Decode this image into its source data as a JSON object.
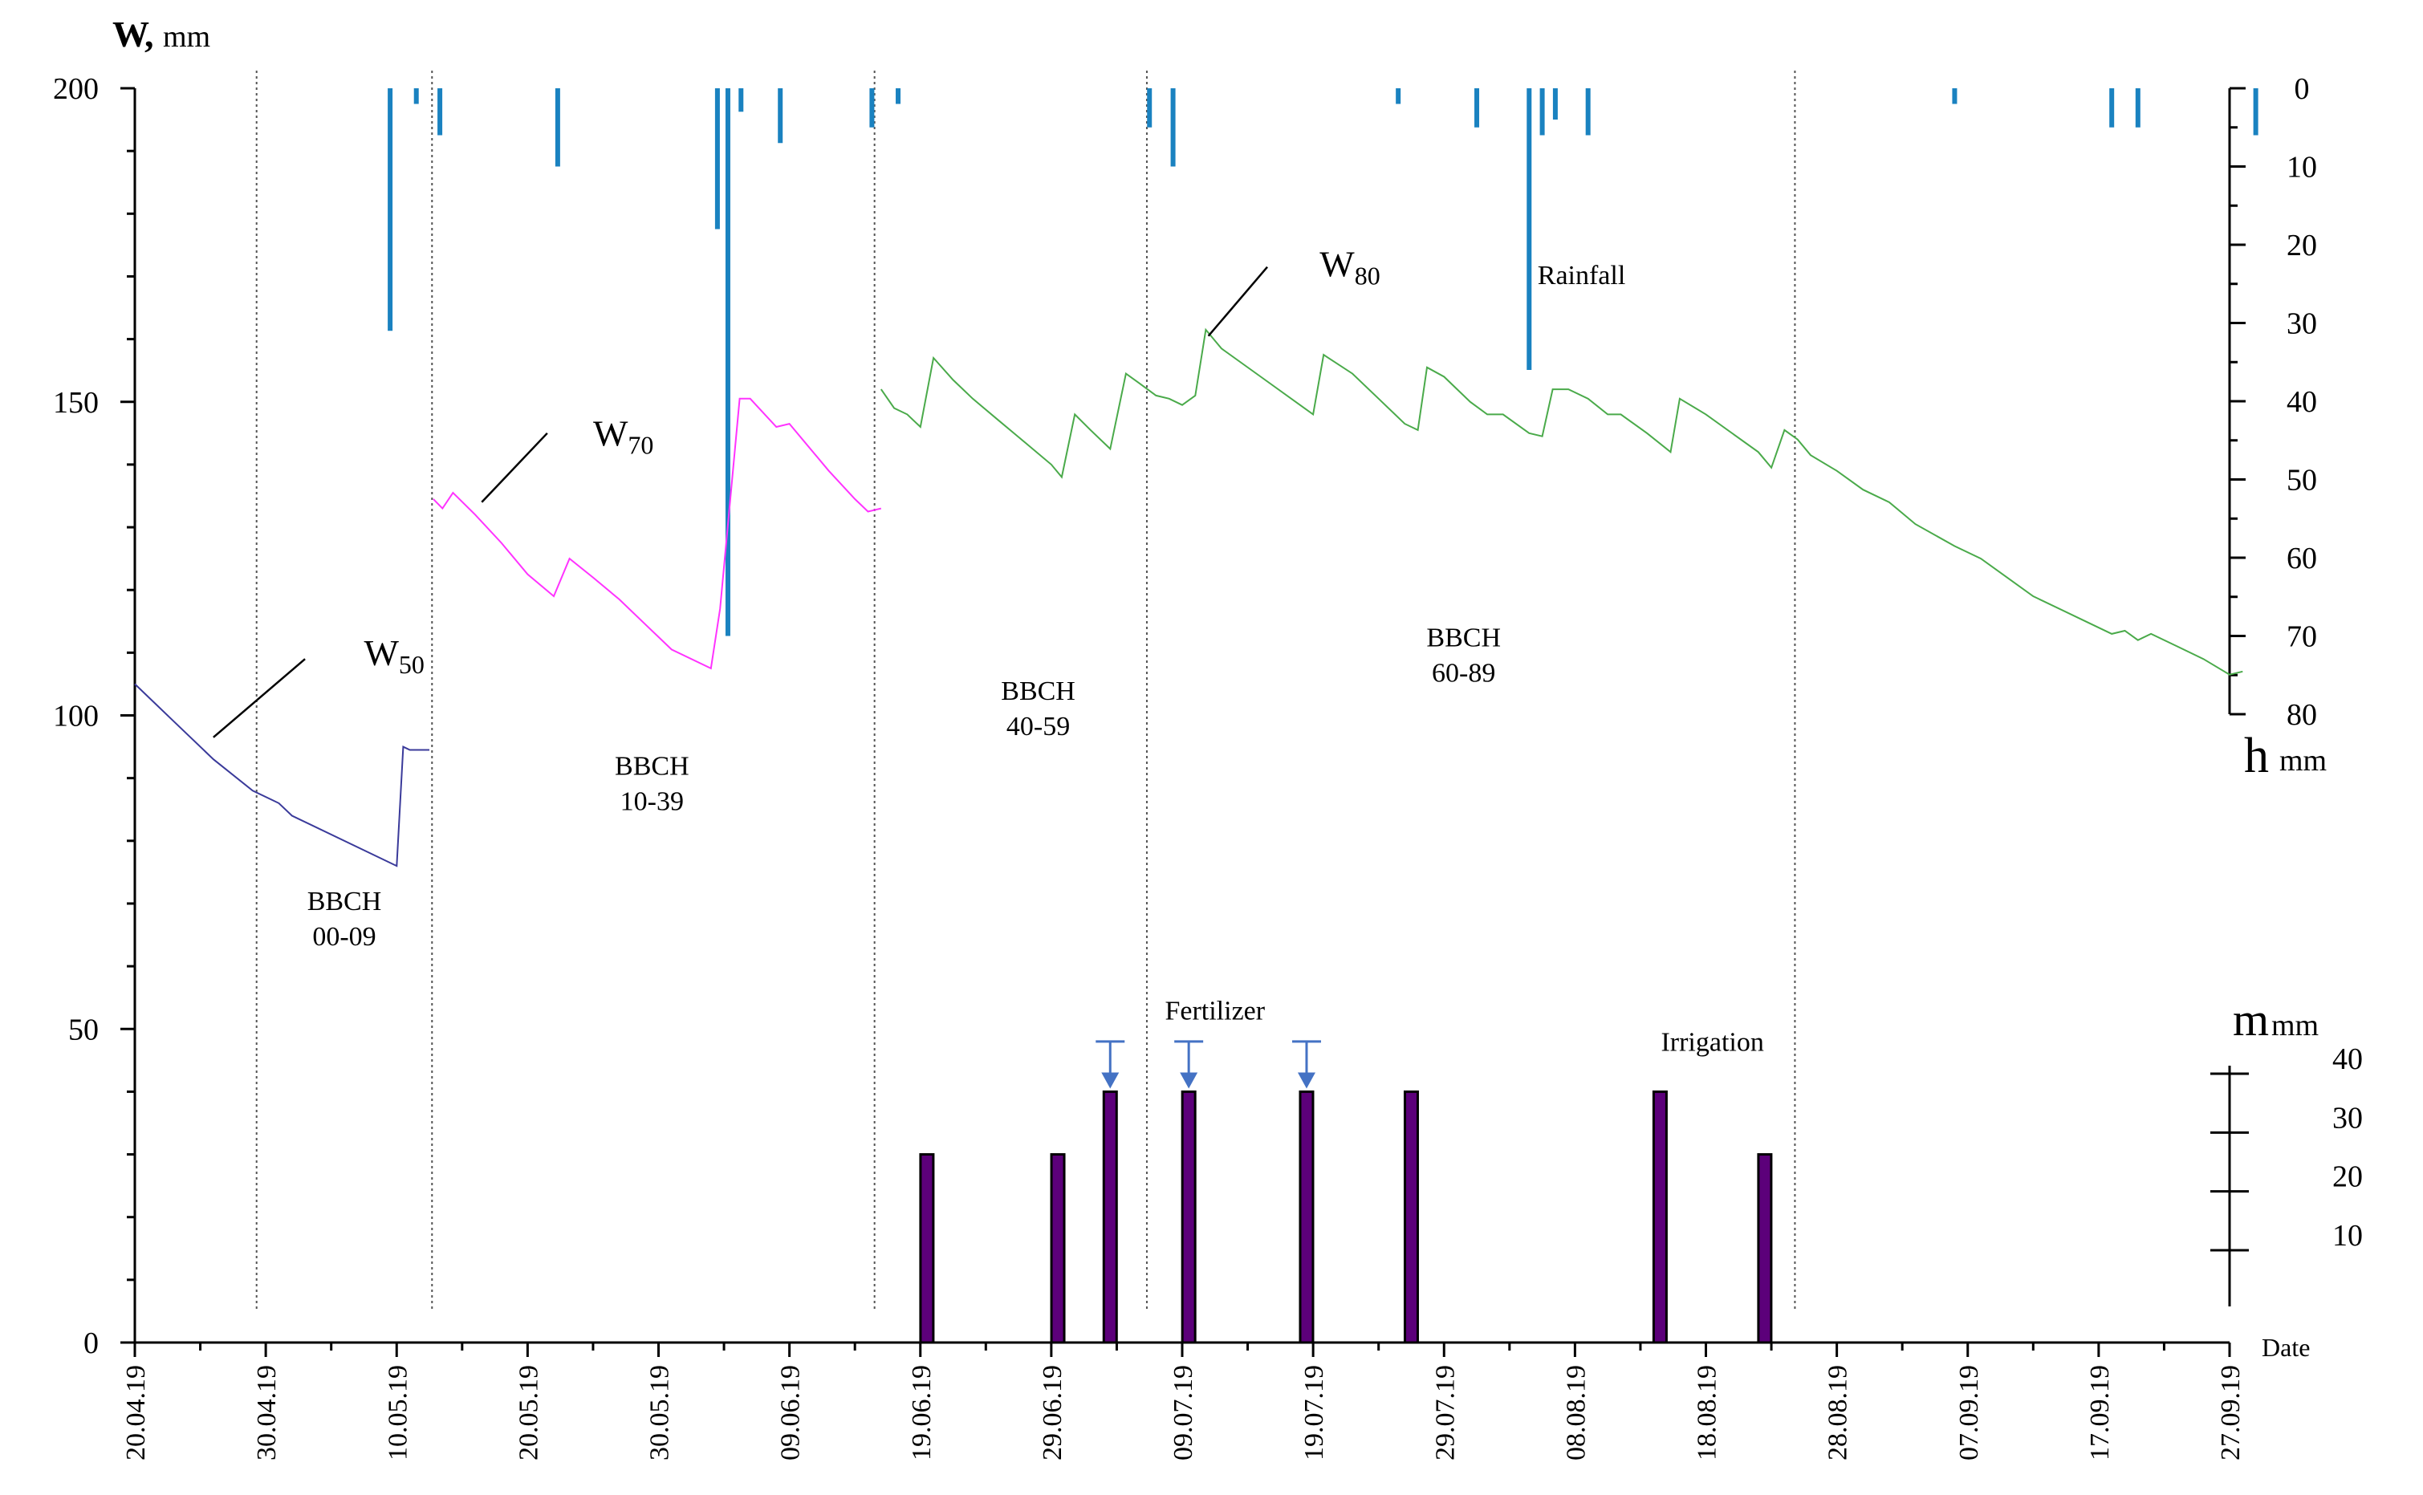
{
  "chart_data": {
    "type": "line",
    "left_axis": {
      "title": "W",
      "title_suffix": ",",
      "unit": "mm",
      "range": [
        0,
        200
      ],
      "ticks": [
        0,
        50,
        100,
        150,
        200
      ]
    },
    "rain_axis": {
      "title": "h",
      "unit": "mm",
      "range": [
        0,
        80
      ],
      "inverted": true,
      "ticks": [
        0,
        10,
        20,
        30,
        40,
        50,
        60,
        70,
        80
      ]
    },
    "irrigation_axis": {
      "title": "m",
      "unit": "mm",
      "range": [
        0,
        40
      ],
      "ticks": [
        10,
        20,
        30,
        40
      ]
    },
    "x_axis": {
      "title": "Date",
      "labels": [
        "20.04.19",
        "30.04.19",
        "10.05.19",
        "20.05.19",
        "30.05.19",
        "09.06.19",
        "19.06.19",
        "29.06.19",
        "09.07.19",
        "19.07.19",
        "29.07.19",
        "08.08.19",
        "18.08.19",
        "28.08.19",
        "07.09.19",
        "17.09.19",
        "27.09.19"
      ],
      "start_day": 0,
      "end_day": 160,
      "label_step_days": 10
    },
    "stage_boundaries_day": [
      9.3,
      22.7,
      56.5,
      77.3,
      126.8
    ],
    "stages": [
      {
        "label1": "BBCH",
        "label2": "00-09",
        "day": 16,
        "y": 69
      },
      {
        "label1": "BBCH",
        "label2": "10-39",
        "day": 39.5,
        "y": 90.5
      },
      {
        "label1": "BBCH",
        "label2": "40-59",
        "day": 69,
        "y": 102.5
      },
      {
        "label1": "BBCH",
        "label2": "60-89",
        "day": 101.5,
        "y": 111
      }
    ],
    "series": [
      {
        "name": "W",
        "sub": "50",
        "color": "#3a3a9a",
        "label_day": 17.5,
        "label_y": 108,
        "points": [
          [
            0,
            105
          ],
          [
            3,
            99
          ],
          [
            6,
            93
          ],
          [
            9,
            88
          ],
          [
            10.5,
            86.5
          ],
          [
            11,
            86
          ],
          [
            12,
            84
          ],
          [
            20,
            76
          ],
          [
            20.5,
            95
          ],
          [
            21,
            94.5
          ],
          [
            22.5,
            94.5
          ]
        ]
      },
      {
        "name": "W",
        "sub": "70",
        "color": "#ff33ff",
        "label_day": 35,
        "label_y": 143,
        "points": [
          [
            22.8,
            134.5
          ],
          [
            23.5,
            133
          ],
          [
            24.3,
            135.5
          ],
          [
            26,
            132
          ],
          [
            28,
            127.5
          ],
          [
            30,
            122.5
          ],
          [
            32,
            119
          ],
          [
            33.2,
            125
          ],
          [
            35,
            122
          ],
          [
            37,
            118.5
          ],
          [
            39,
            114.5
          ],
          [
            41,
            110.5
          ],
          [
            44,
            107.5
          ],
          [
            44.7,
            117
          ],
          [
            46.2,
            150.5
          ],
          [
            47,
            150.5
          ],
          [
            49,
            146
          ],
          [
            50,
            146.5
          ],
          [
            53,
            139
          ],
          [
            55,
            134.5
          ],
          [
            56,
            132.5
          ],
          [
            57,
            133
          ]
        ]
      },
      {
        "name": "W",
        "sub": "80",
        "color": "#4aaa4a",
        "label_day": 90.5,
        "label_y": 170,
        "points": [
          [
            57,
            152
          ],
          [
            58,
            149
          ],
          [
            59,
            148
          ],
          [
            60,
            146
          ],
          [
            61,
            157
          ],
          [
            62.5,
            153.5
          ],
          [
            64,
            150.5
          ],
          [
            66,
            147
          ],
          [
            68,
            143.5
          ],
          [
            70,
            140
          ],
          [
            70.8,
            138
          ],
          [
            71.8,
            148
          ],
          [
            73,
            145.5
          ],
          [
            74.5,
            142.5
          ],
          [
            75.7,
            154.5
          ],
          [
            76.7,
            153
          ],
          [
            78,
            151
          ],
          [
            79,
            150.5
          ],
          [
            80,
            149.5
          ],
          [
            81,
            151
          ],
          [
            81.8,
            161.5
          ],
          [
            83,
            158.5
          ],
          [
            86,
            154
          ],
          [
            89,
            149.5
          ],
          [
            90,
            148
          ],
          [
            90.8,
            157.5
          ],
          [
            93,
            154.5
          ],
          [
            95,
            150.5
          ],
          [
            97,
            146.5
          ],
          [
            98,
            145.5
          ],
          [
            98.7,
            155.5
          ],
          [
            100,
            154
          ],
          [
            102,
            150
          ],
          [
            103.3,
            148
          ],
          [
            104.5,
            148
          ],
          [
            106.5,
            145
          ],
          [
            107.5,
            144.5
          ],
          [
            108.3,
            152
          ],
          [
            109.5,
            152
          ],
          [
            111,
            150.5
          ],
          [
            112.5,
            148
          ],
          [
            113.5,
            148
          ],
          [
            115.5,
            145
          ],
          [
            117.3,
            142
          ],
          [
            118,
            150.5
          ],
          [
            120,
            148
          ],
          [
            124,
            142
          ],
          [
            125,
            139.5
          ],
          [
            126,
            145.5
          ],
          [
            127,
            144
          ],
          [
            128,
            141.5
          ],
          [
            130,
            139
          ],
          [
            132,
            136
          ],
          [
            134,
            134
          ],
          [
            136,
            130.5
          ],
          [
            139,
            127
          ],
          [
            141,
            125
          ],
          [
            143,
            122
          ],
          [
            145,
            119
          ],
          [
            149,
            115
          ],
          [
            151,
            113
          ],
          [
            152,
            113.5
          ],
          [
            153,
            112
          ],
          [
            154,
            113
          ],
          [
            156,
            111
          ],
          [
            158,
            109
          ],
          [
            160,
            106.5
          ],
          [
            161,
            107
          ]
        ]
      }
    ],
    "rainfall": {
      "label": "Rainfall",
      "label_day": 110.5,
      "label_h": 25,
      "color": "#1a82c0",
      "bars": [
        [
          19.5,
          31
        ],
        [
          21.5,
          2
        ],
        [
          23.3,
          6
        ],
        [
          32.3,
          10
        ],
        [
          44.5,
          18
        ],
        [
          45.3,
          70
        ],
        [
          46.3,
          3
        ],
        [
          49.3,
          7
        ],
        [
          56.3,
          5
        ],
        [
          58.3,
          2
        ],
        [
          77.5,
          5
        ],
        [
          79.3,
          10
        ],
        [
          96.5,
          2
        ],
        [
          102.5,
          5
        ],
        [
          106.5,
          36
        ],
        [
          107.5,
          6
        ],
        [
          108.5,
          4
        ],
        [
          111.0,
          6
        ],
        [
          139.0,
          2
        ],
        [
          151.0,
          5
        ],
        [
          153.0,
          5
        ],
        [
          162.0,
          6
        ]
      ]
    },
    "irrigation": {
      "label": "Irrigation",
      "label_day": 120.5,
      "label_y": 46.5,
      "color": "#5c007a",
      "bars": [
        [
          60.5,
          30
        ],
        [
          70.5,
          30
        ],
        [
          74.5,
          40
        ],
        [
          80.5,
          40
        ],
        [
          89.5,
          40
        ],
        [
          97.5,
          40
        ],
        [
          116.5,
          40
        ],
        [
          124.5,
          30
        ]
      ]
    },
    "fertilizer": {
      "label": "Fertilizer",
      "label_day": 82.5,
      "label_y": 51.5,
      "color": "#4472c4",
      "days": [
        74.5,
        80.5,
        89.5
      ]
    }
  }
}
